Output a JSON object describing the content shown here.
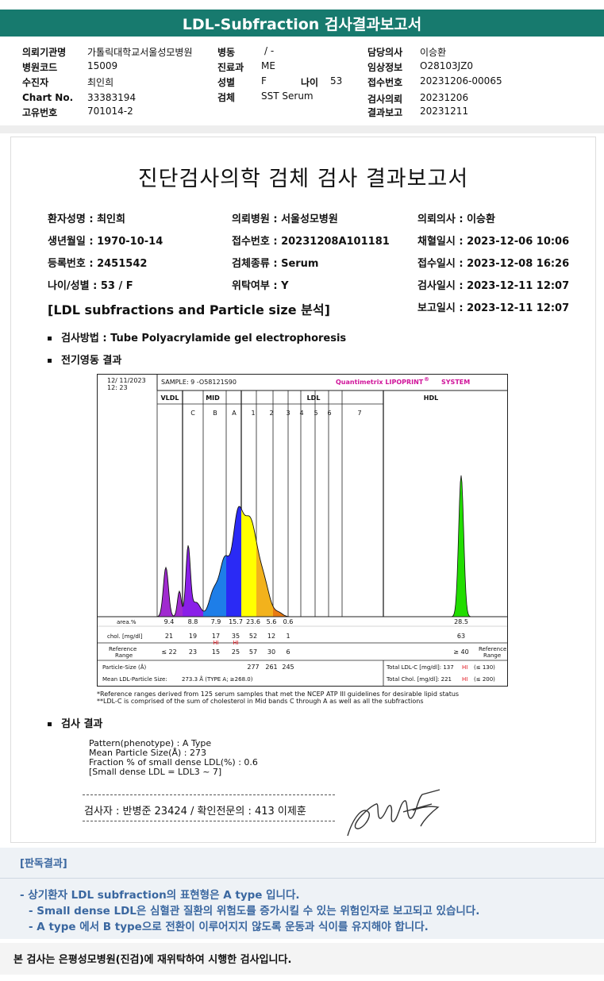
{
  "title": "LDL-Subfraction 검사결과보고서",
  "header": [
    {
      "label": "의뢰기관명",
      "value": "가톨릭대학교서울성모병원"
    },
    {
      "label": "병원코드",
      "value": "15009"
    },
    {
      "label": "수진자",
      "value": "최인희"
    },
    {
      "label": "Chart No.",
      "value": "33383194"
    },
    {
      "label": "고유번호",
      "value": "701014-2"
    },
    {
      "label": "병동",
      "value": "/ -"
    },
    {
      "label": "진료과",
      "value": "ME"
    },
    {
      "label": "성별",
      "value": "F"
    },
    {
      "label": "나이",
      "value": "53"
    },
    {
      "label": "검체",
      "value": "SST Serum"
    },
    {
      "label": "담당의사",
      "value": "이승환"
    },
    {
      "label": "임상정보",
      "value": "O28103JZ0"
    },
    {
      "label": "접수번호",
      "value": "20231206-00065"
    },
    {
      "label": "검사의뢰",
      "value": "20231206"
    },
    {
      "label": "결과보고",
      "value": "20231211"
    }
  ],
  "report": {
    "title": "진단검사의학 검체 검사 결과보고서",
    "info": [
      "환자성명 : 최인희",
      "의뢰병원 : 서울성모병원",
      "의뢰의사 : 이승환",
      "생년월일 : 1970-10-14",
      "접수번호 : 20231208A101181",
      "채혈일시 : 2023-12-06 10:06",
      "등록번호 : 2451542",
      "검체종류 : Serum",
      "접수일시 : 2023-12-08 16:26",
      "나이/성별 : 53 / F",
      "위탁여부 : Y",
      "검사일시 : 2023-12-11 12:07",
      "보고일시 : 2023-12-11 12:07"
    ],
    "section_title": "[LDL subfractions and Particle size 분석]",
    "method": "검사방법 : Tube Polyacrylamide gel electrophoresis",
    "electro": "전기영동 결과",
    "result_heading": "검사 결과",
    "results": [
      "Pattern(phenotype) : A Type",
      "Mean Particle Size(Å) : 273",
      "Fraction % of small dense LDL(%) : 0.6",
      "[Small dense LDL = LDL3 ~ 7]"
    ],
    "signature": "검사자 : 반병준  23424  /  확인전문의 : 413  이제훈",
    "notes": [
      "*Reference ranges derived from 125 serum samples that met the NCEP ATP III guidelines for desirable lipid status",
      "**LDL-C is comprised of the sum of cholesterol in Mid bands C through A as well as all the subfractions"
    ]
  },
  "chart": {
    "date": "12/ 11/2023",
    "time": "12: 23",
    "sample": "SAMPLE:   9 -O58121S90",
    "brand": "Quantimetrix LIPOPRINT",
    "brand_reg": "®",
    "brand_sys": "SYSTEM",
    "groups": [
      "VLDL",
      "MID",
      "LDL",
      "HDL"
    ],
    "bands": [
      "C",
      "B",
      "A",
      "1",
      "2",
      "3",
      "4",
      "5",
      "6",
      "7"
    ],
    "row_labels": [
      "area.%",
      "chol. [mg/dl]",
      "Reference Range",
      "Particle-Size (Å)",
      "Mean LDL-Particle Size:"
    ],
    "area": [
      "9.4",
      "8.8",
      "7.9",
      "15.7",
      "23.6",
      "5.6",
      "0.6",
      "28.5"
    ],
    "chol": [
      "21",
      "19",
      "17",
      "35",
      "52",
      "12",
      "1",
      "63"
    ],
    "hi": "HI",
    "ref": [
      "≤ 22",
      "23",
      "15",
      "25",
      "57",
      "30",
      "6",
      "≥ 40"
    ],
    "particle": [
      "277",
      "261",
      "245"
    ],
    "mean_size": "273.3 Å   (TYPE A; ≥268.0)",
    "total_ldl": "Total LDL-C [mg/dl]:  137",
    "total_ldl_ref": "(≤ 130)",
    "total_chol": "Total Chol. [mg/dl]:  221",
    "total_chol_ref": "(≤ 200)",
    "ref_label_right": "Reference Range"
  },
  "judgement": {
    "heading": "[판독결과]",
    "lines": [
      "- 상기환자 LDL subfraction의 표현형은 A type 입니다.",
      "-  Small dense LDL은 심혈관 질환의 위험도를 증가시킬 수 있는 위험인자로 보고되고 있습니다.",
      "-  A type 에서 B type으로 전환이 이루어지지 않도록 운동과 식이를 유지해야 합니다."
    ]
  },
  "footer": "본 검사는 은평성모병원(진검)에 재위탁하여 시행한 검사입니다.",
  "colors": {
    "title_bar": "#177a6e",
    "judgement": "#3a67a0",
    "brand": "#d0149a",
    "hi": "#e0101a"
  }
}
